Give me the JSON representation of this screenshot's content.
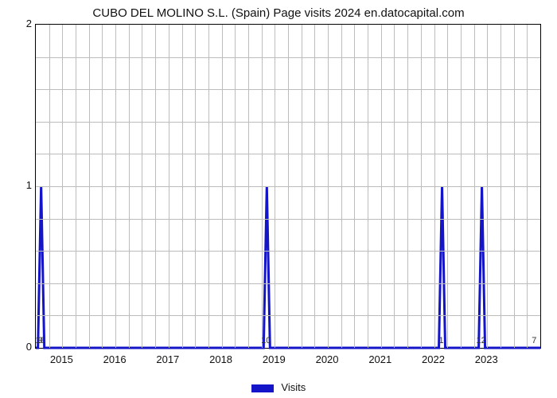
{
  "chart": {
    "type": "line-spike",
    "title": "CUBO DEL MOLINO S.L. (Spain) Page visits 2024 en.datocapital.com",
    "title_fontsize": 15,
    "title_color": "#111111",
    "background_color": "#ffffff",
    "plot_border_color": "#000000",
    "grid_color": "#bdbdbd",
    "tick_fontsize": 13,
    "tick_color": "#111111",
    "peak_label_fontsize": 11,
    "x_axis": {
      "label": "",
      "domain_min": 2014.5,
      "domain_max": 2024.0,
      "ticks": [
        2015,
        2016,
        2017,
        2018,
        2019,
        2020,
        2021,
        2022,
        2023
      ],
      "vgrid_minor": [
        2014.75,
        2015.25,
        2015.5,
        2015.75,
        2016.25,
        2016.5,
        2016.75,
        2017.25,
        2017.5,
        2017.75,
        2018.25,
        2018.5,
        2018.75,
        2019.25,
        2019.5,
        2019.75,
        2020.25,
        2020.5,
        2020.75,
        2021.25,
        2021.5,
        2021.75,
        2022.25,
        2022.5,
        2022.75,
        2023.25,
        2023.5,
        2023.75
      ]
    },
    "y_axis": {
      "label": "",
      "ylim": [
        0,
        2
      ],
      "ticks": [
        0,
        1,
        2
      ],
      "hgrid_minor": [
        0.2,
        0.4,
        0.6,
        0.8,
        1.2,
        1.4,
        1.6,
        1.8
      ]
    },
    "series": {
      "name": "Visits",
      "color": "#1414c8",
      "line_width": 3,
      "baseline": 0,
      "spikes": [
        {
          "x": 2014.6,
          "value": 1,
          "label": "10",
          "label_y": 0
        },
        {
          "x": 2018.85,
          "value": 1,
          "label": "10",
          "label_y": 0
        },
        {
          "x": 2022.15,
          "value": 1,
          "label": "1",
          "label_y": 0
        },
        {
          "x": 2022.9,
          "value": 1,
          "label": "12",
          "label_y": 0
        },
        {
          "x": 2023.9,
          "value": 0,
          "label": "7",
          "label_y": 0
        }
      ],
      "corner_label_left": "9",
      "spike_half_width_x": 0.06
    },
    "legend": {
      "label": "Visits",
      "swatch_color": "#1414c8",
      "position": "bottom-center"
    }
  }
}
